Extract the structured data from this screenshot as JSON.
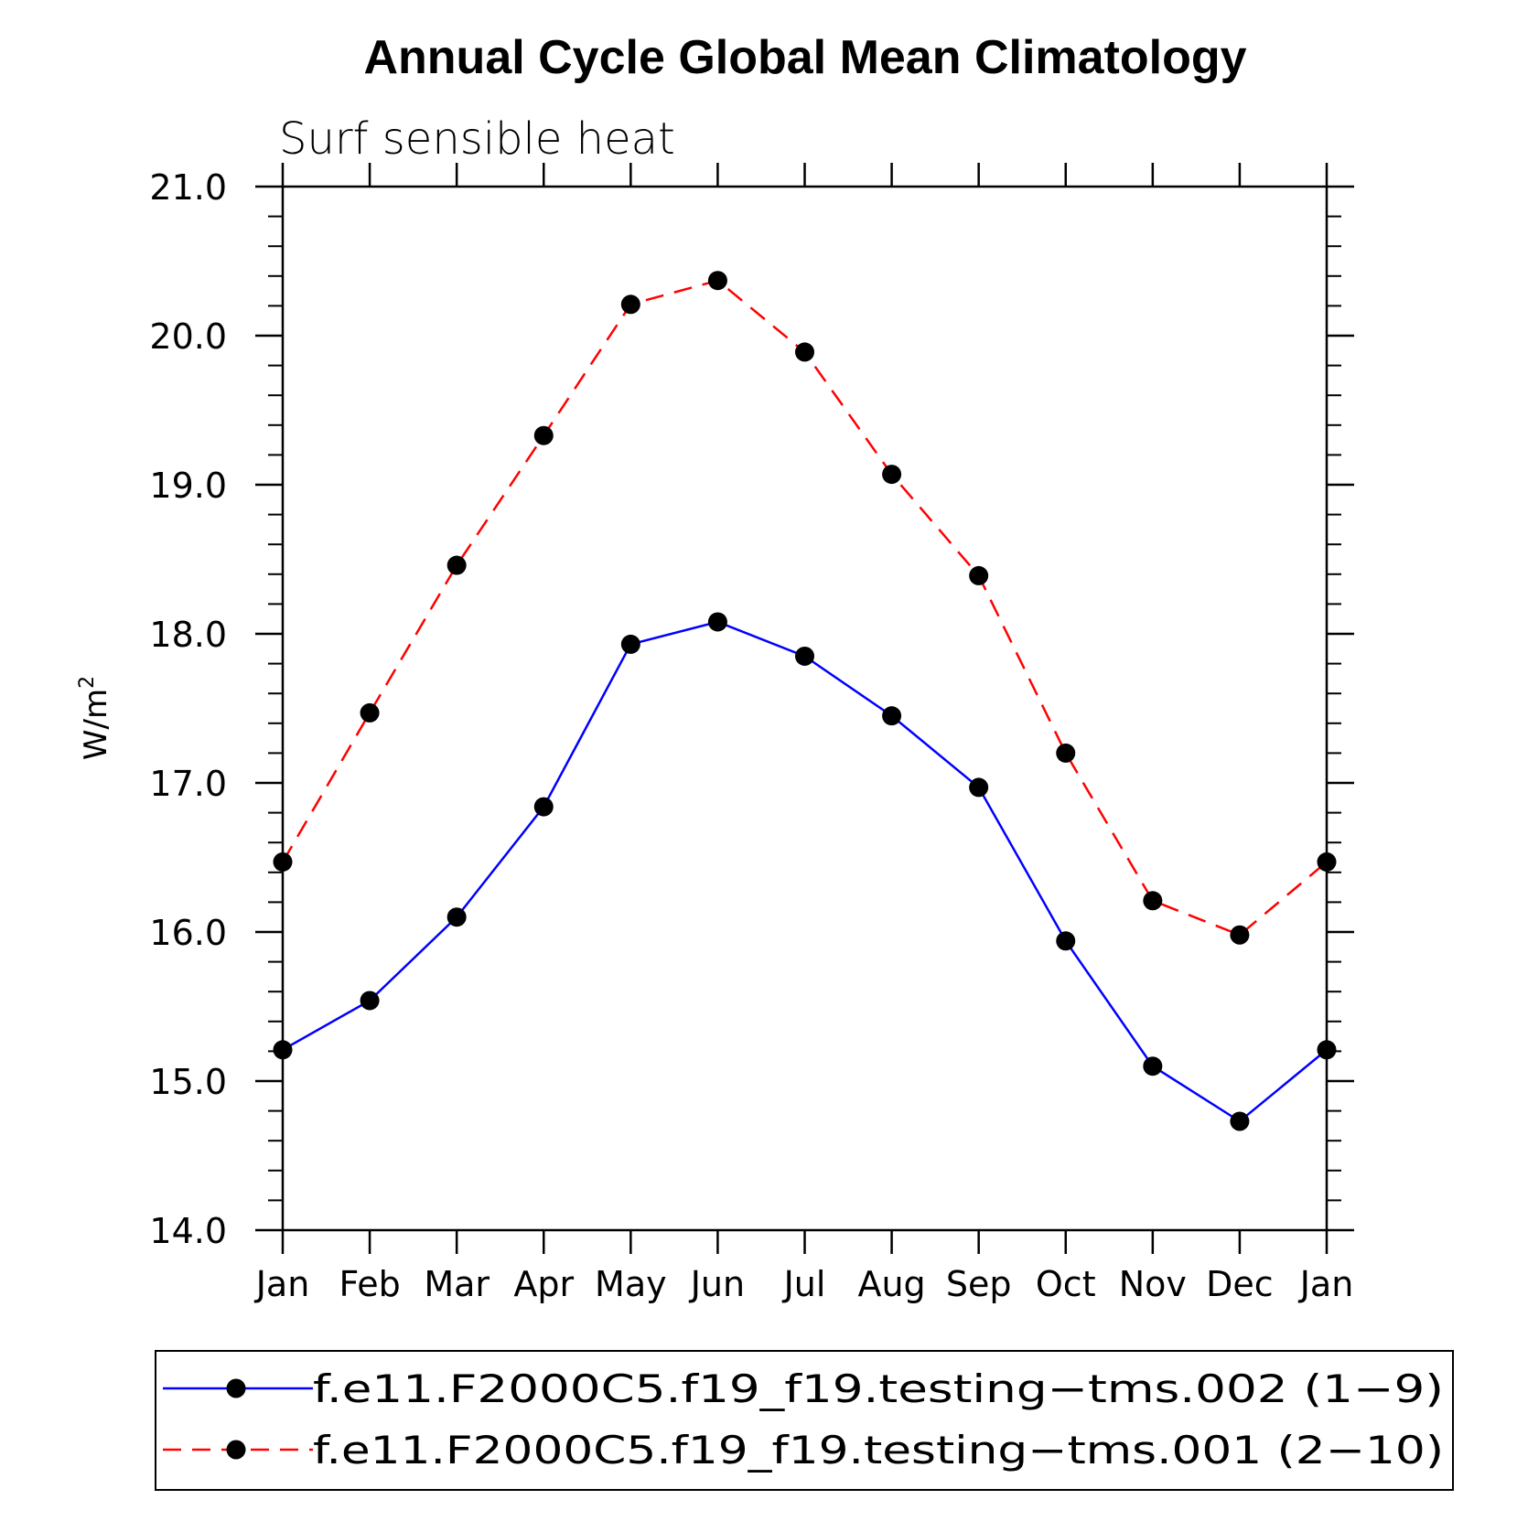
{
  "chart_data": {
    "type": "line",
    "title": "Annual Cycle Global Mean Climatology",
    "subtitle": "Surf sensible heat",
    "ylabel": "W/m",
    "ylabel_sup": "2",
    "xlabel": "",
    "ylim": [
      14.0,
      21.0
    ],
    "yticks": [
      "14.0",
      "15.0",
      "16.0",
      "17.0",
      "18.0",
      "19.0",
      "20.0",
      "21.0"
    ],
    "categories": [
      "Jan",
      "Feb",
      "Mar",
      "Apr",
      "May",
      "Jun",
      "Jul",
      "Aug",
      "Sep",
      "Oct",
      "Nov",
      "Dec",
      "Jan"
    ],
    "series": [
      {
        "name": "f.e11.F2000C5.f19_f19.testing−tms.002 (1−9)",
        "color": "#0000ff",
        "dashed": false,
        "values": [
          15.21,
          15.54,
          16.1,
          16.84,
          17.93,
          18.08,
          17.85,
          17.45,
          16.97,
          15.94,
          15.1,
          14.73,
          15.21
        ]
      },
      {
        "name": "f.e11.F2000C5.f19_f19.testing−tms.001 (2−10)",
        "color": "#ff0000",
        "dashed": true,
        "values": [
          16.47,
          17.47,
          18.46,
          19.33,
          20.21,
          20.37,
          19.89,
          19.07,
          18.39,
          17.2,
          16.21,
          15.98,
          16.47
        ]
      }
    ],
    "marker_color": "#000000",
    "legend_position": "bottom"
  }
}
